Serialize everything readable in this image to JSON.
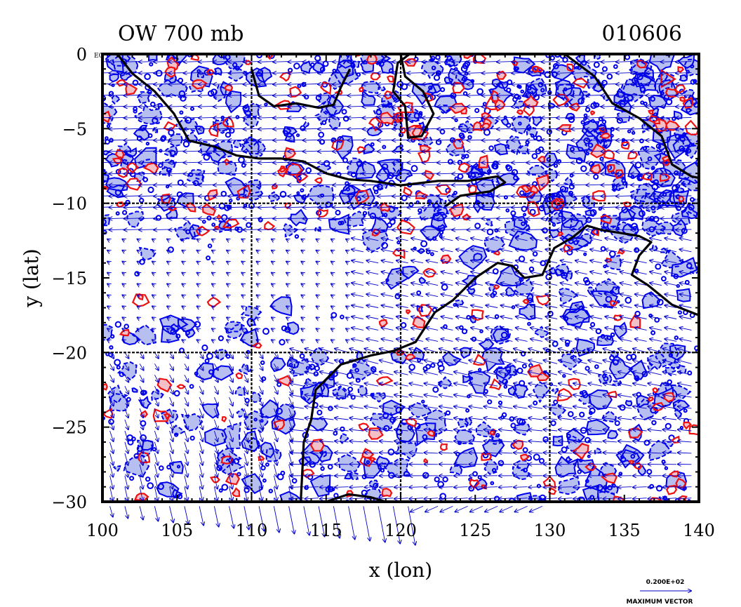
{
  "plot": {
    "title_left": "OW 700 mb",
    "title_right": "010606",
    "xlabel": "x (lon)",
    "ylabel": "y (lat)",
    "equator_label": "EQ"
  },
  "legend": {
    "vector_scale": "0.200E+02",
    "vector_label": "MAXIMUM VECTOR"
  },
  "chart_data": {
    "type": "map",
    "xlim": [
      100,
      140
    ],
    "ylim": [
      -30,
      0
    ],
    "x_ticks": [
      100,
      105,
      110,
      115,
      120,
      125,
      130,
      135,
      140
    ],
    "y_ticks": [
      0,
      -5,
      -10,
      -15,
      -20,
      -25,
      -30
    ],
    "x_tick_labels": [
      "100",
      "105",
      "110",
      "115",
      "120",
      "125",
      "130",
      "135",
      "140"
    ],
    "y_tick_labels": [
      "0",
      "−5",
      "−10",
      "−15",
      "−20",
      "−25",
      "−30"
    ],
    "grid_lon": [
      110,
      120,
      130
    ],
    "grid_lat": [
      -10,
      -20
    ],
    "colors": {
      "negative_contour": "#0000ee",
      "negative_fill": "#aab4ee",
      "positive_contour": "#ee1111",
      "positive_fill": "#f4c0c8",
      "coastline": "#000000",
      "vectors": "#0000cc"
    },
    "coastlines": {
      "sumatra_java": [
        [
          101,
          0
        ],
        [
          102,
          -1.3
        ],
        [
          103.5,
          -2.5
        ],
        [
          104.8,
          -4
        ],
        [
          105.8,
          -5.8
        ],
        [
          107.5,
          -6.2
        ],
        [
          109,
          -6.8
        ],
        [
          110.5,
          -7
        ],
        [
          112,
          -7
        ],
        [
          113.5,
          -7.2
        ],
        [
          115,
          -8
        ],
        [
          116.5,
          -8.4
        ],
        [
          118,
          -8.5
        ],
        [
          120,
          -8.8
        ],
        [
          122.5,
          -8.5
        ],
        [
          124.5,
          -8.5
        ],
        [
          126.5,
          -8.2
        ],
        [
          127,
          -8.6
        ],
        [
          126,
          -9.2
        ],
        [
          124,
          -9.5
        ],
        [
          123,
          -10.2
        ]
      ],
      "borneo_south": [
        [
          110,
          -1
        ],
        [
          110.5,
          -2.8
        ],
        [
          111.5,
          -3.5
        ],
        [
          113,
          -3.3
        ],
        [
          114.5,
          -3.6
        ],
        [
          115.5,
          -3.4
        ],
        [
          116,
          -2.2
        ],
        [
          116.6,
          -1
        ]
      ],
      "sulawesi": [
        [
          120,
          0
        ],
        [
          120.3,
          -1.5
        ],
        [
          121.5,
          -2.5
        ],
        [
          122.2,
          -4
        ],
        [
          121.4,
          -5.5
        ],
        [
          120.5,
          -5.6
        ],
        [
          120.3,
          -3.5
        ],
        [
          119.5,
          -2.5
        ],
        [
          119.8,
          -0.6
        ],
        [
          120.6,
          0
        ]
      ],
      "new_guinea": [
        [
          131,
          0
        ],
        [
          133,
          -1.5
        ],
        [
          134.2,
          -3.3
        ],
        [
          136,
          -4.3
        ],
        [
          137.5,
          -5.5
        ],
        [
          138.2,
          -7.4
        ],
        [
          139.5,
          -8.2
        ],
        [
          140,
          -8.3
        ]
      ],
      "australia_west": [
        [
          113.3,
          -30
        ],
        [
          113.4,
          -28
        ],
        [
          113.5,
          -26
        ],
        [
          114,
          -24.5
        ],
        [
          114.3,
          -22.5
        ],
        [
          116,
          -20.8
        ],
        [
          118,
          -20.2
        ],
        [
          119.5,
          -19.9
        ],
        [
          121,
          -19.3
        ],
        [
          122.3,
          -17.3
        ],
        [
          123.5,
          -16.5
        ],
        [
          125,
          -15
        ],
        [
          126.5,
          -14
        ],
        [
          127.5,
          -14.2
        ],
        [
          128.3,
          -15
        ],
        [
          129.5,
          -14.8
        ],
        [
          130.3,
          -13
        ],
        [
          131.5,
          -12.3
        ],
        [
          132.5,
          -11.5
        ],
        [
          133.5,
          -11.8
        ],
        [
          134.8,
          -12
        ],
        [
          136,
          -12.2
        ],
        [
          136.8,
          -12.6
        ],
        [
          136,
          -13.5
        ],
        [
          135.5,
          -14.8
        ],
        [
          136.6,
          -15.5
        ],
        [
          138.2,
          -16.8
        ],
        [
          140,
          -17.5
        ]
      ],
      "australia_south": [
        [
          115,
          -30
        ],
        [
          116.5,
          -29.5
        ],
        [
          118,
          -29.7
        ],
        [
          119,
          -30
        ]
      ]
    }
  }
}
